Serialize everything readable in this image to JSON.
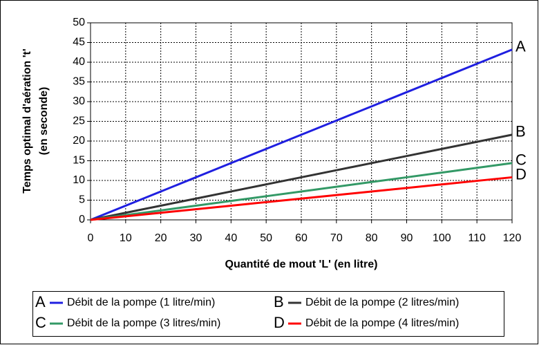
{
  "chart_data": {
    "type": "line",
    "xlabel": "Quantité de mout 'L' (en litre)",
    "ylabel": [
      "Temps optimal d'aération 't'",
      "(en seconde)"
    ],
    "x": [
      0,
      10,
      20,
      30,
      40,
      50,
      60,
      70,
      80,
      90,
      100,
      110,
      120
    ],
    "xlim": [
      0,
      120
    ],
    "xticks": [
      0,
      10,
      20,
      30,
      40,
      50,
      60,
      70,
      80,
      90,
      100,
      110,
      120
    ],
    "ylim": [
      0,
      50
    ],
    "yticks": [
      0,
      5,
      10,
      15,
      20,
      25,
      30,
      35,
      40,
      45,
      50
    ],
    "grid": true,
    "legend": "bottom",
    "series": [
      {
        "label": "A",
        "name": "Débit de la pompe (1 litre/min)",
        "color": "#1f1fe0",
        "values": [
          0,
          3.6,
          7.2,
          10.8,
          14.4,
          18,
          21.6,
          25.2,
          28.8,
          32.4,
          36,
          39.6,
          43.2
        ]
      },
      {
        "label": "B",
        "name": "Débit de la pompe (2 litres/min)",
        "color": "#333333",
        "values": [
          0,
          1.8,
          3.6,
          5.4,
          7.2,
          9,
          10.8,
          12.6,
          14.4,
          16.2,
          18,
          19.8,
          21.6
        ]
      },
      {
        "label": "C",
        "name": "Débit de la pompe (3 litres/min)",
        "color": "#339966",
        "values": [
          0,
          1.2,
          2.4,
          3.6,
          4.8,
          6,
          7.2,
          8.4,
          9.6,
          10.8,
          12,
          13.2,
          14.4
        ]
      },
      {
        "label": "D",
        "name": "Débit de la pompe (4 litres/min)",
        "color": "#ff0000",
        "values": [
          0,
          0.9,
          1.8,
          2.7,
          3.6,
          4.5,
          5.4,
          6.3,
          7.2,
          8.1,
          9,
          9.9,
          10.8
        ]
      }
    ]
  }
}
